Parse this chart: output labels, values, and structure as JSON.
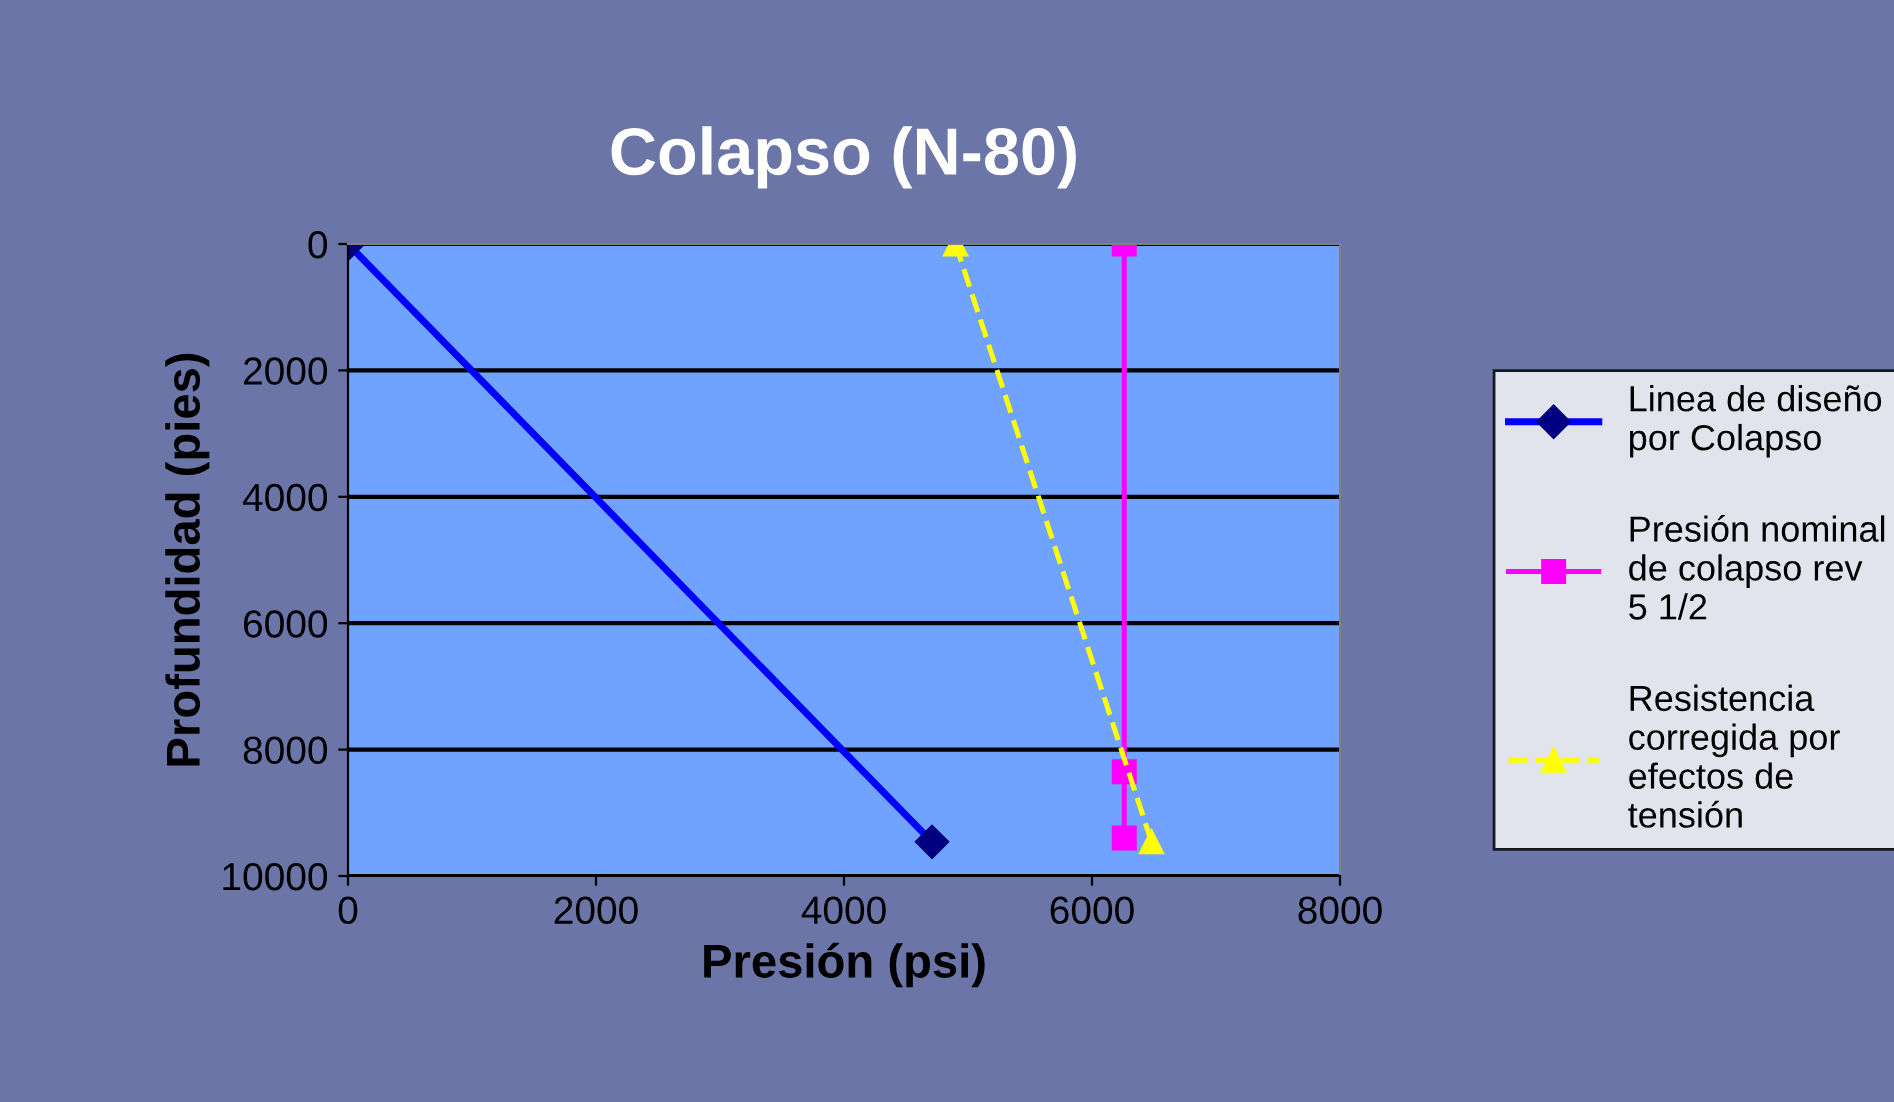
{
  "chart_data": {
    "type": "line",
    "title": "Colapso (N-80)",
    "xlabel": "Presión (psi)",
    "ylabel": "Profundidad (pies)",
    "xlim": [
      0,
      8000
    ],
    "xticks": [
      0,
      2000,
      4000,
      6000,
      8000
    ],
    "ylim": [
      10000,
      0
    ],
    "yticks": [
      0,
      2000,
      4000,
      6000,
      8000,
      10000
    ],
    "grid": "y",
    "legend": "right",
    "series": [
      {
        "name": "Linea de diseño por Colapso",
        "color": "#0000ff",
        "x": [
          0,
          4710
        ],
        "values": [
          0,
          9460
        ],
        "marker": "diamond",
        "line_style": "solid"
      },
      {
        "name": "Presión nominal de colapso rev 5 1/2",
        "color": "#ff00ff",
        "x": [
          6260,
          6260,
          6260
        ],
        "values": [
          0,
          8350,
          9400
        ],
        "marker": "square",
        "line_style": "solid"
      },
      {
        "name": "Resistencia corregida por efectos de tensión",
        "color": "#ffff00",
        "x": [
          4900,
          6480
        ],
        "values": [
          0,
          9460
        ],
        "marker": "triangle",
        "line_style": "dashed"
      }
    ]
  }
}
